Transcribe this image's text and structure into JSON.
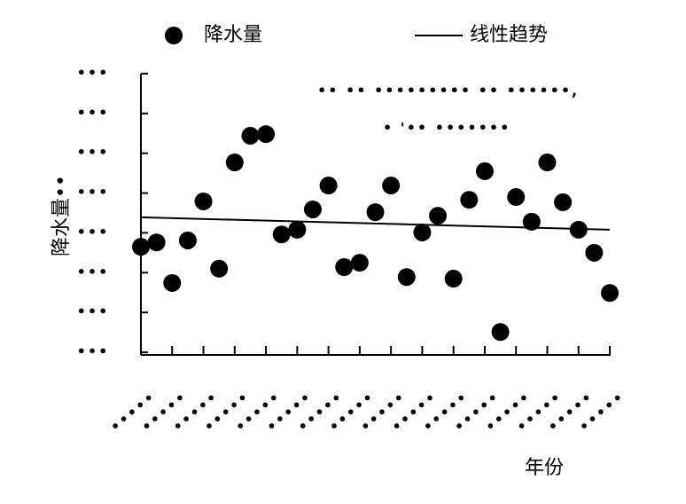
{
  "chart_data": {
    "type": "scatter",
    "ylabel": "降水量••",
    "xlabel": "年份",
    "annotations": [
      "•• •• ••••••••• •• ••••••,",
      "• '•• •••••••"
    ],
    "x": [
      0,
      1,
      2,
      3,
      4,
      5,
      6,
      7,
      8,
      9,
      10,
      11,
      12,
      13,
      14,
      15,
      16,
      17,
      18,
      19,
      20,
      21,
      22,
      23,
      24,
      25,
      26,
      27,
      28,
      29,
      30
    ],
    "series": [
      {
        "name": "降水量",
        "color": "#000000",
        "values": [
          2.65,
          2.76,
          1.74,
          2.81,
          3.79,
          2.1,
          4.77,
          5.44,
          5.48,
          2.96,
          3.08,
          3.59,
          4.19,
          2.14,
          2.25,
          3.52,
          4.19,
          1.89,
          3.01,
          3.43,
          1.85,
          3.83,
          4.55,
          0.51,
          3.9,
          3.28,
          4.77,
          3.77,
          3.08,
          2.5,
          1.49
        ]
      },
      {
        "name": "线性趋势",
        "color": "#000000",
        "type": "line",
        "x": [
          0,
          30
        ],
        "values": [
          3.39,
          3.08
        ]
      }
    ],
    "xlim": [
      0,
      30
    ],
    "xticks": [
      {
        "value": 0,
        "label": "•••••"
      },
      {
        "value": 2,
        "label": "•••••"
      },
      {
        "value": 4,
        "label": "•••••"
      },
      {
        "value": 6,
        "label": "•••••"
      },
      {
        "value": 8,
        "label": "•••••"
      },
      {
        "value": 10,
        "label": "•••••"
      },
      {
        "value": 12,
        "label": "•••••"
      },
      {
        "value": 14,
        "label": "•••••"
      },
      {
        "value": 16,
        "label": "•••••"
      },
      {
        "value": 18,
        "label": "•••••"
      },
      {
        "value": 20,
        "label": "•••••"
      },
      {
        "value": 22,
        "label": "•••••"
      },
      {
        "value": 24,
        "label": "•••••"
      },
      {
        "value": 26,
        "label": "•••••"
      },
      {
        "value": 28,
        "label": "•••••"
      },
      {
        "value": 30,
        "label": "•••••"
      }
    ],
    "ylim": [
      0,
      7
    ],
    "yticks": [
      {
        "value": 0,
        "label": "•••"
      },
      {
        "value": 1,
        "label": "•••"
      },
      {
        "value": 2,
        "label": "•••"
      },
      {
        "value": 3,
        "label": "•••"
      },
      {
        "value": 4,
        "label": "•••"
      },
      {
        "value": 5,
        "label": "•••"
      },
      {
        "value": 6,
        "label": "•••"
      },
      {
        "value": 7,
        "label": "•••"
      }
    ],
    "legend": "top"
  }
}
